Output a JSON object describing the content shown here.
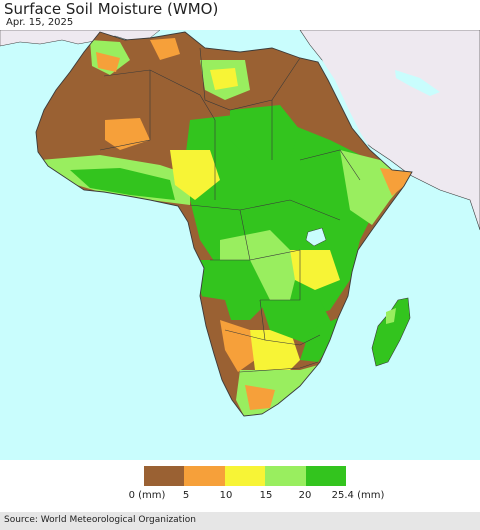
{
  "header": {
    "title": "Surface Soil Moisture (WMO)",
    "date": "Apr. 15, 2025"
  },
  "legend": {
    "colors": [
      "#9a6133",
      "#f6a03a",
      "#f7f436",
      "#99ee5f",
      "#33c41e"
    ],
    "labels": [
      "0 (mm)",
      "5",
      "10",
      "15",
      "20",
      "25.4 (mm)"
    ]
  },
  "map_colors": {
    "ocean": "#c9fdfd",
    "outside_region": "#eee9f0",
    "border": "#3a3a3a"
  },
  "footer": {
    "source": "Source: World Meteorological Organization"
  }
}
